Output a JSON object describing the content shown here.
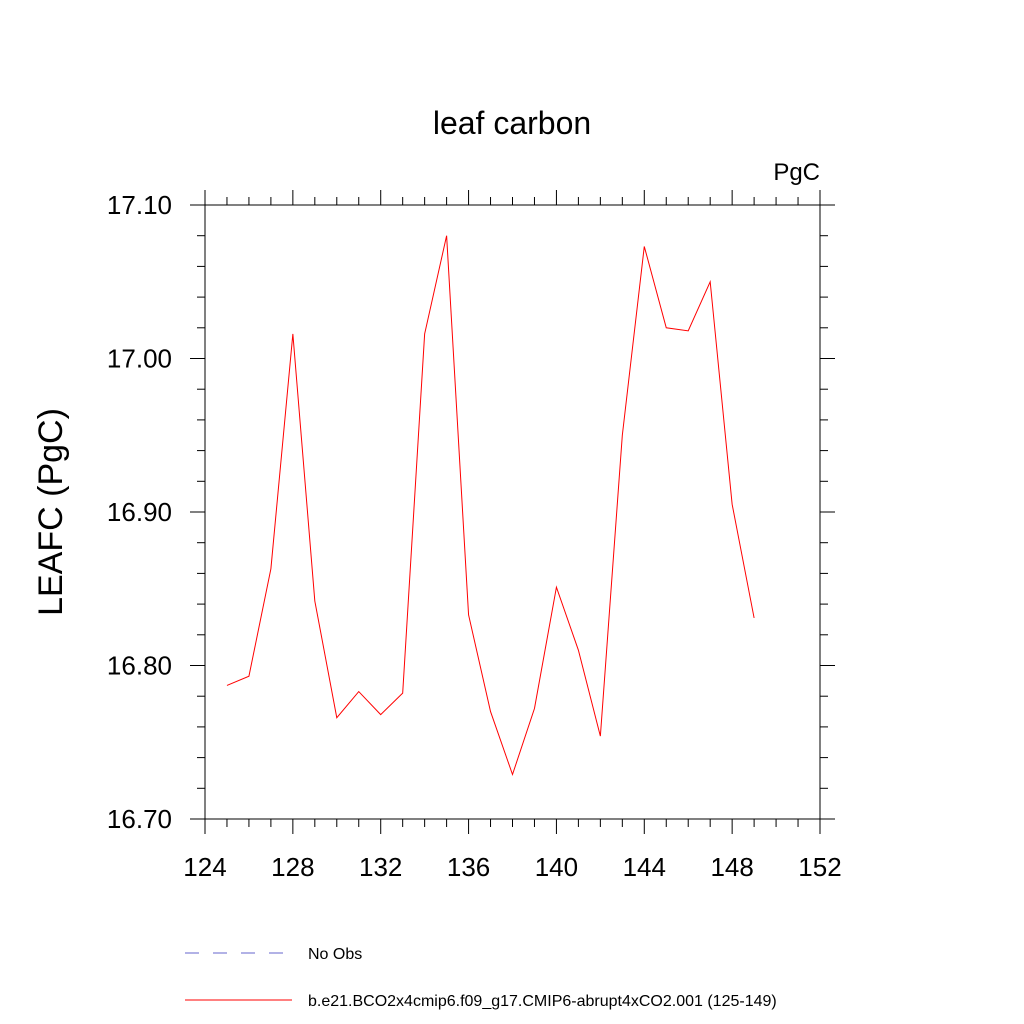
{
  "chart_data": {
    "type": "line",
    "title": "leaf carbon",
    "units_label": "PgC",
    "ylabel": "LEAFC  (PgC)",
    "xlabel": "",
    "xlim": [
      124,
      152
    ],
    "ylim": [
      16.7,
      17.1
    ],
    "x_ticks": [
      "124",
      "128",
      "132",
      "136",
      "140",
      "144",
      "148",
      "152"
    ],
    "y_ticks": [
      "16.70",
      "16.80",
      "16.90",
      "17.00",
      "17.10"
    ],
    "grid": false,
    "legend_position": "bottom",
    "series": [
      {
        "name": "b.e21.BCO2x4cmip6.f09_g17.CMIP6-abrupt4xCO2.001 (125-149)",
        "color": "#ff0000",
        "style": "solid",
        "x": [
          125,
          126,
          127,
          128,
          129,
          130,
          131,
          132,
          133,
          134,
          135,
          136,
          137,
          138,
          139,
          140,
          141,
          142,
          143,
          144,
          145,
          146,
          147,
          148,
          149
        ],
        "y": [
          16.787,
          16.793,
          16.863,
          17.016,
          16.842,
          16.766,
          16.783,
          16.768,
          16.782,
          17.016,
          17.08,
          16.833,
          16.77,
          16.729,
          16.772,
          16.851,
          16.81,
          16.754,
          16.95,
          17.073,
          17.02,
          17.018,
          17.05,
          16.905,
          16.831
        ]
      }
    ],
    "legend": [
      {
        "label": "No Obs",
        "color": "#6666cc",
        "style": "dashed"
      },
      {
        "label": "b.e21.BCO2x4cmip6.f09_g17.CMIP6-abrupt4xCO2.001 (125-149)",
        "color": "#ff0000",
        "style": "solid"
      }
    ]
  }
}
